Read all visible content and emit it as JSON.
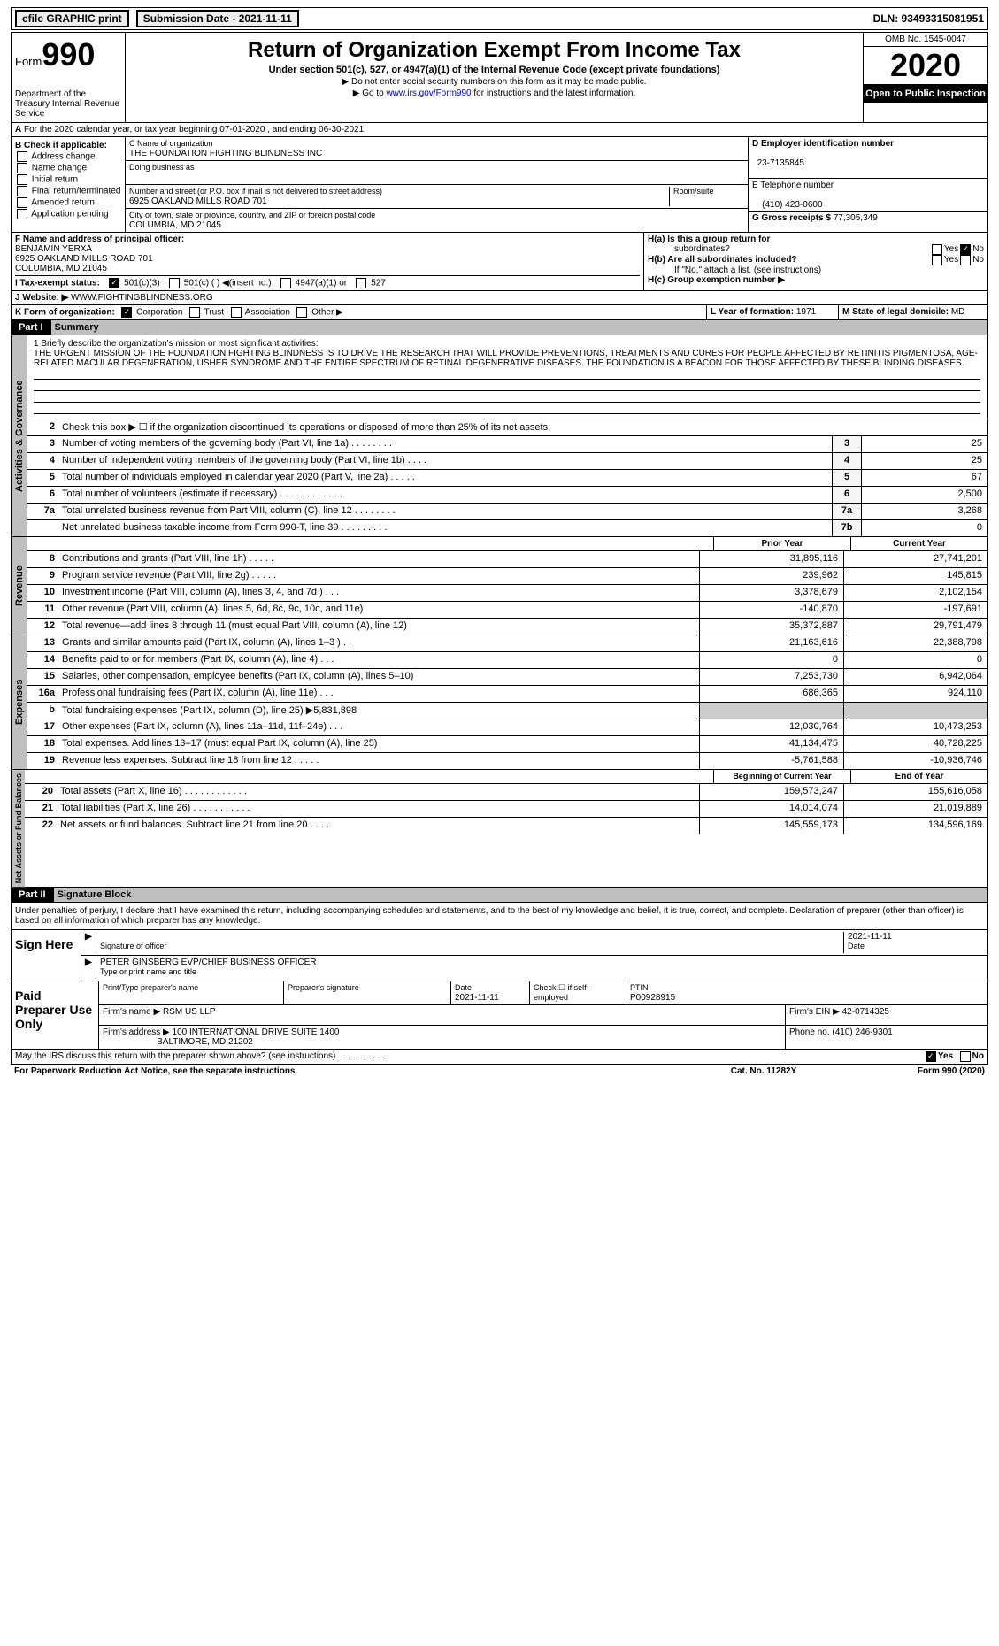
{
  "topbar": {
    "efile": "efile GRAPHIC print",
    "sub": "Submission Date - 2021-11-11",
    "dln": "DLN: 93493315081951"
  },
  "header": {
    "form": "Form",
    "n990": "990",
    "dept": "Department of the Treasury Internal Revenue Service",
    "title": "Return of Organization Exempt From Income Tax",
    "sub": "Under section 501(c), 527, or 4947(a)(1) of the Internal Revenue Code (except private foundations)",
    "note1": "▶ Do not enter social security numbers on this form as it may be made public.",
    "note2a": "▶ Go to ",
    "note2link": "www.irs.gov/Form990",
    "note2b": " for instructions and the latest information.",
    "omb": "OMB No. 1545-0047",
    "year": "2020",
    "open": "Open to Public Inspection"
  },
  "rowA": {
    "text": "For the 2020 calendar year, or tax year beginning 07-01-2020   , and ending 06-30-2021"
  },
  "colB": {
    "title": "B Check if applicable:",
    "items": [
      "Address change",
      "Name change",
      "Initial return",
      "Final return/terminated",
      "Amended return",
      "Application pending"
    ]
  },
  "colC": {
    "nameLabel": "C Name of organization",
    "name": "THE FOUNDATION FIGHTING BLINDNESS INC",
    "dba": "Doing business as",
    "addrLabel": "Number and street (or P.O. box if mail is not delivered to street address)",
    "addr": "6925 OAKLAND MILLS ROAD 701",
    "room": "Room/suite",
    "cityLabel": "City or town, state or province, country, and ZIP or foreign postal code",
    "city": "COLUMBIA, MD  21045"
  },
  "colD": {
    "einLabel": "D Employer identification number",
    "ein": "23-7135845",
    "telLabel": "E Telephone number",
    "tel": "(410) 423-0600",
    "grossLabel": "G Gross receipts $",
    "gross": "77,305,349"
  },
  "rowF": {
    "label": "F  Name and address of principal officer:",
    "name": "BENJAMIN YERXA",
    "addr": "6925 OAKLAND MILLS ROAD 701",
    "city": "COLUMBIA, MD  21045"
  },
  "rowH": {
    "ha": "H(a)  Is this a group return for",
    "ha2": "subordinates?",
    "hb": "H(b)  Are all subordinates included?",
    "hbnote": "If \"No,\" attach a list. (see instructions)",
    "hc": "H(c)  Group exemption number ▶",
    "yes": "Yes",
    "no": "No"
  },
  "rowI": {
    "label": "I   Tax-exempt status:",
    "s1": "501(c)(3)",
    "s2": "501(c) (  ) ◀(insert no.)",
    "s3": "4947(a)(1) or",
    "s4": "527"
  },
  "rowJ": {
    "label": "J   Website: ▶",
    "url": "WWW.FIGHTINGBLINDNESS.ORG"
  },
  "rowK": {
    "label": "K Form of organization:",
    "c": "Corporation",
    "t": "Trust",
    "a": "Association",
    "o": "Other ▶",
    "ll": "L Year of formation:",
    "lv": "1971",
    "ml": "M State of legal domicile:",
    "mv": "MD"
  },
  "part1": {
    "hdr": "Part I",
    "title": "Summary"
  },
  "mission": {
    "lead": "1   Briefly describe the organization's mission or most significant activities:",
    "text": "THE URGENT MISSION OF THE FOUNDATION FIGHTING BLINDNESS IS TO DRIVE THE RESEARCH THAT WILL PROVIDE PREVENTIONS, TREATMENTS AND CURES FOR PEOPLE AFFECTED BY RETINITIS PIGMENTOSA, AGE-RELATED MACULAR DEGENERATION, USHER SYNDROME AND THE ENTIRE SPECTRUM OF RETINAL DEGENERATIVE DISEASES. THE FOUNDATION IS A BEACON FOR THOSE AFFECTED BY THESE BLINDING DISEASES."
  },
  "summary": [
    {
      "n": "2",
      "d": "Check this box ▶ ☐  if the organization discontinued its operations or disposed of more than 25% of its net assets."
    },
    {
      "n": "3",
      "d": "Number of voting members of the governing body (Part VI, line 1a)   .    .    .    .    .    .    .    .    .",
      "b": "3",
      "v": "25"
    },
    {
      "n": "4",
      "d": "Number of independent voting members of the governing body (Part VI, line 1b)   .    .    .    .",
      "b": "4",
      "v": "25"
    },
    {
      "n": "5",
      "d": "Total number of individuals employed in calendar year 2020 (Part V, line 2a)   .    .    .    .    .",
      "b": "5",
      "v": "67"
    },
    {
      "n": "6",
      "d": "Total number of volunteers (estimate if necessary)   .    .    .    .    .    .    .    .    .    .    .    .",
      "b": "6",
      "v": "2,500"
    },
    {
      "n": "7a",
      "d": "Total unrelated business revenue from Part VIII, column (C), line 12   .    .    .    .    .    .    .    .",
      "b": "7a",
      "v": "3,268"
    },
    {
      "n": "",
      "d": "Net unrelated business taxable income from Form 990-T, line 39   .    .    .    .    .    .    .    .    .",
      "b": "7b",
      "v": "0"
    }
  ],
  "revHdr": {
    "c1": "Prior Year",
    "c2": "Current Year"
  },
  "revenue": [
    {
      "n": "8",
      "d": "Contributions and grants (Part VIII, line 1h)   .    .    .    .    .",
      "p": "31,895,116",
      "c": "27,741,201"
    },
    {
      "n": "9",
      "d": "Program service revenue (Part VIII, line 2g)   .    .    .    .    .",
      "p": "239,962",
      "c": "145,815"
    },
    {
      "n": "10",
      "d": "Investment income (Part VIII, column (A), lines 3, 4, and 7d )   .    .    .",
      "p": "3,378,679",
      "c": "2,102,154"
    },
    {
      "n": "11",
      "d": "Other revenue (Part VIII, column (A), lines 5, 6d, 8c, 9c, 10c, and 11e)",
      "p": "-140,870",
      "c": "-197,691"
    },
    {
      "n": "12",
      "d": "Total revenue—add lines 8 through 11 (must equal Part VIII, column (A), line 12)",
      "p": "35,372,887",
      "c": "29,791,479"
    }
  ],
  "expenses": [
    {
      "n": "13",
      "d": "Grants and similar amounts paid (Part IX, column (A), lines 1–3 )   .    .",
      "p": "21,163,616",
      "c": "22,388,798"
    },
    {
      "n": "14",
      "d": "Benefits paid to or for members (Part IX, column (A), line 4)   .    .    .",
      "p": "0",
      "c": "0"
    },
    {
      "n": "15",
      "d": "Salaries, other compensation, employee benefits (Part IX, column (A), lines 5–10)",
      "p": "7,253,730",
      "c": "6,942,064"
    },
    {
      "n": "16a",
      "d": "Professional fundraising fees (Part IX, column (A), line 11e)   .    .    .",
      "p": "686,365",
      "c": "924,110"
    },
    {
      "n": "b",
      "d": "Total fundraising expenses (Part IX, column (D), line 25) ▶5,831,898",
      "p": "",
      "c": ""
    },
    {
      "n": "17",
      "d": "Other expenses (Part IX, column (A), lines 11a–11d, 11f–24e)   .    .    .",
      "p": "12,030,764",
      "c": "10,473,253"
    },
    {
      "n": "18",
      "d": "Total expenses. Add lines 13–17 (must equal Part IX, column (A), line 25)",
      "p": "41,134,475",
      "c": "40,728,225"
    },
    {
      "n": "19",
      "d": "Revenue less expenses. Subtract line 18 from line 12   .    .    .    .    .",
      "p": "-5,761,588",
      "c": "-10,936,746"
    }
  ],
  "netHdr": {
    "c1": "Beginning of Current Year",
    "c2": "End of Year"
  },
  "net": [
    {
      "n": "20",
      "d": "Total assets (Part X, line 16)   .    .    .    .    .    .    .    .    .    .    .    .",
      "p": "159,573,247",
      "c": "155,616,058"
    },
    {
      "n": "21",
      "d": "Total liabilities (Part X, line 26)   .    .    .    .    .    .    .    .    .    .    .",
      "p": "14,014,074",
      "c": "21,019,889"
    },
    {
      "n": "22",
      "d": "Net assets or fund balances. Subtract line 21 from line 20   .    .    .    .",
      "p": "145,559,173",
      "c": "134,596,169"
    }
  ],
  "tabs": {
    "gov": "Activities & Governance",
    "rev": "Revenue",
    "exp": "Expenses",
    "net": "Net Assets or Fund Balances"
  },
  "part2": {
    "hdr": "Part II",
    "title": "Signature Block"
  },
  "sigText": "Under penalties of perjury, I declare that I have examined this return, including accompanying schedules and statements, and to the best of my knowledge and belief, it is true, correct, and complete. Declaration of preparer (other than officer) is based on all information of which preparer has any knowledge.",
  "sign": {
    "label": "Sign Here",
    "sig": "Signature of officer",
    "date": "2021-11-11",
    "dateL": "Date",
    "name": "PETER GINSBERG  EVP/CHIEF BUSINESS OFFICER",
    "nameL": "Type or print name and title"
  },
  "prep": {
    "label": "Paid Preparer Use Only",
    "h1": "Print/Type preparer's name",
    "h2": "Preparer's signature",
    "h3": "Date",
    "h3v": "2021-11-11",
    "h4": "Check ☐ if self-employed",
    "h5": "PTIN",
    "h5v": "P00928915",
    "firm": "Firm's name    ▶",
    "firmv": "RSM US LLP",
    "ein": "Firm's EIN ▶",
    "einv": "42-0714325",
    "addr": "Firm's address ▶",
    "addrv": "100 INTERNATIONAL DRIVE SUITE 1400",
    "city": "BALTIMORE, MD  21202",
    "phone": "Phone no.",
    "phonev": "(410) 246-9301"
  },
  "footer": {
    "q": "May the IRS discuss this return with the preparer shown above? (see instructions)   .    .    .    .    .    .    .    .    .    .    .",
    "yes": "Yes",
    "no": "No"
  },
  "foot2": {
    "l": "For Paperwork Reduction Act Notice, see the separate instructions.",
    "m": "Cat. No. 11282Y",
    "r": "Form 990 (2020)"
  }
}
